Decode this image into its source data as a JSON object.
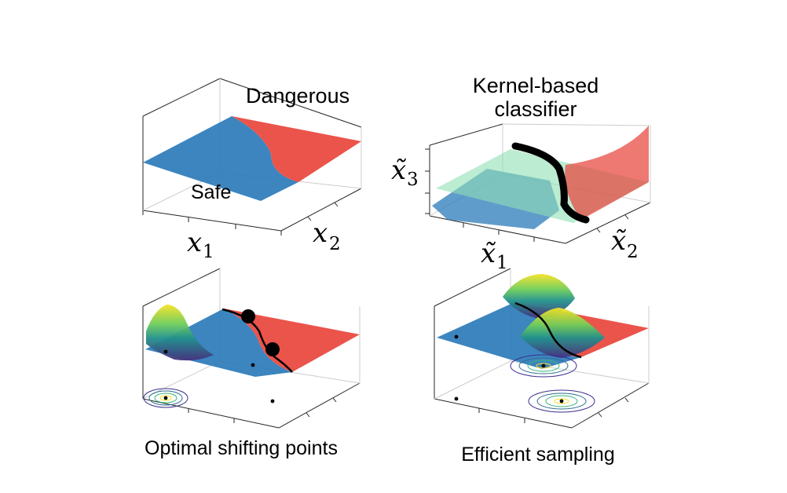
{
  "panels": {
    "top_left": {
      "region_dangerous": "Dangerous",
      "region_safe": "Safe",
      "axis_x1": {
        "base": "x",
        "subscript": "1"
      },
      "axis_x2": {
        "base": "x",
        "subscript": "2"
      }
    },
    "top_right": {
      "title_line1": "Kernel-based",
      "title_line2": "classifier",
      "axis_x1": {
        "base": "x̃",
        "subscript": "1"
      },
      "axis_x2": {
        "base": "x̃",
        "subscript": "2"
      },
      "axis_x3": {
        "base": "x̃",
        "subscript": "3"
      }
    },
    "bottom_left": {
      "caption": "Optimal shifting points"
    },
    "bottom_right": {
      "caption": "Efficient sampling"
    }
  },
  "colors": {
    "safe": "#2b7bba",
    "dangerous": "#e8453c",
    "hyperplane": "#8fe0b4",
    "boundary": "#000000",
    "gauss_high": "#f7e225",
    "gauss_mid": "#35b779",
    "gauss_low": "#3b2f8f"
  }
}
